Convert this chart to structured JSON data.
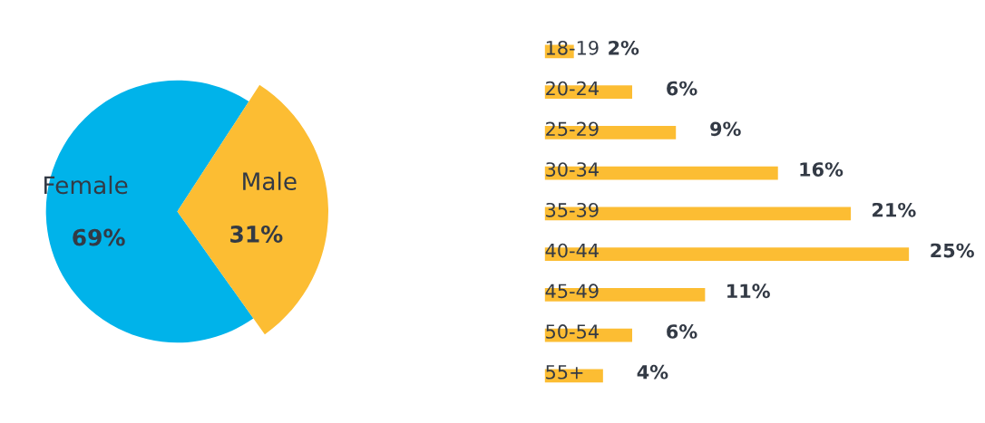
{
  "chart_data": [
    {
      "type": "pie",
      "categories": [
        "Female",
        "Male"
      ],
      "values": [
        69,
        31
      ],
      "colors": [
        "#00b3ea",
        "#fcbd33"
      ],
      "value_labels": [
        "69%",
        "31%"
      ]
    },
    {
      "type": "bar",
      "orientation": "horizontal",
      "categories": [
        "18-19",
        "20-24",
        "25-29",
        "30-34",
        "35-39",
        "40-44",
        "45-49",
        "50-54",
        "55+"
      ],
      "values": [
        2,
        6,
        9,
        16,
        21,
        25,
        11,
        6,
        4
      ],
      "color": "#fcbd33",
      "value_labels": [
        "2%",
        "6%",
        "9%",
        "16%",
        "21%",
        "25%",
        "11%",
        "6%",
        "4%"
      ]
    }
  ]
}
